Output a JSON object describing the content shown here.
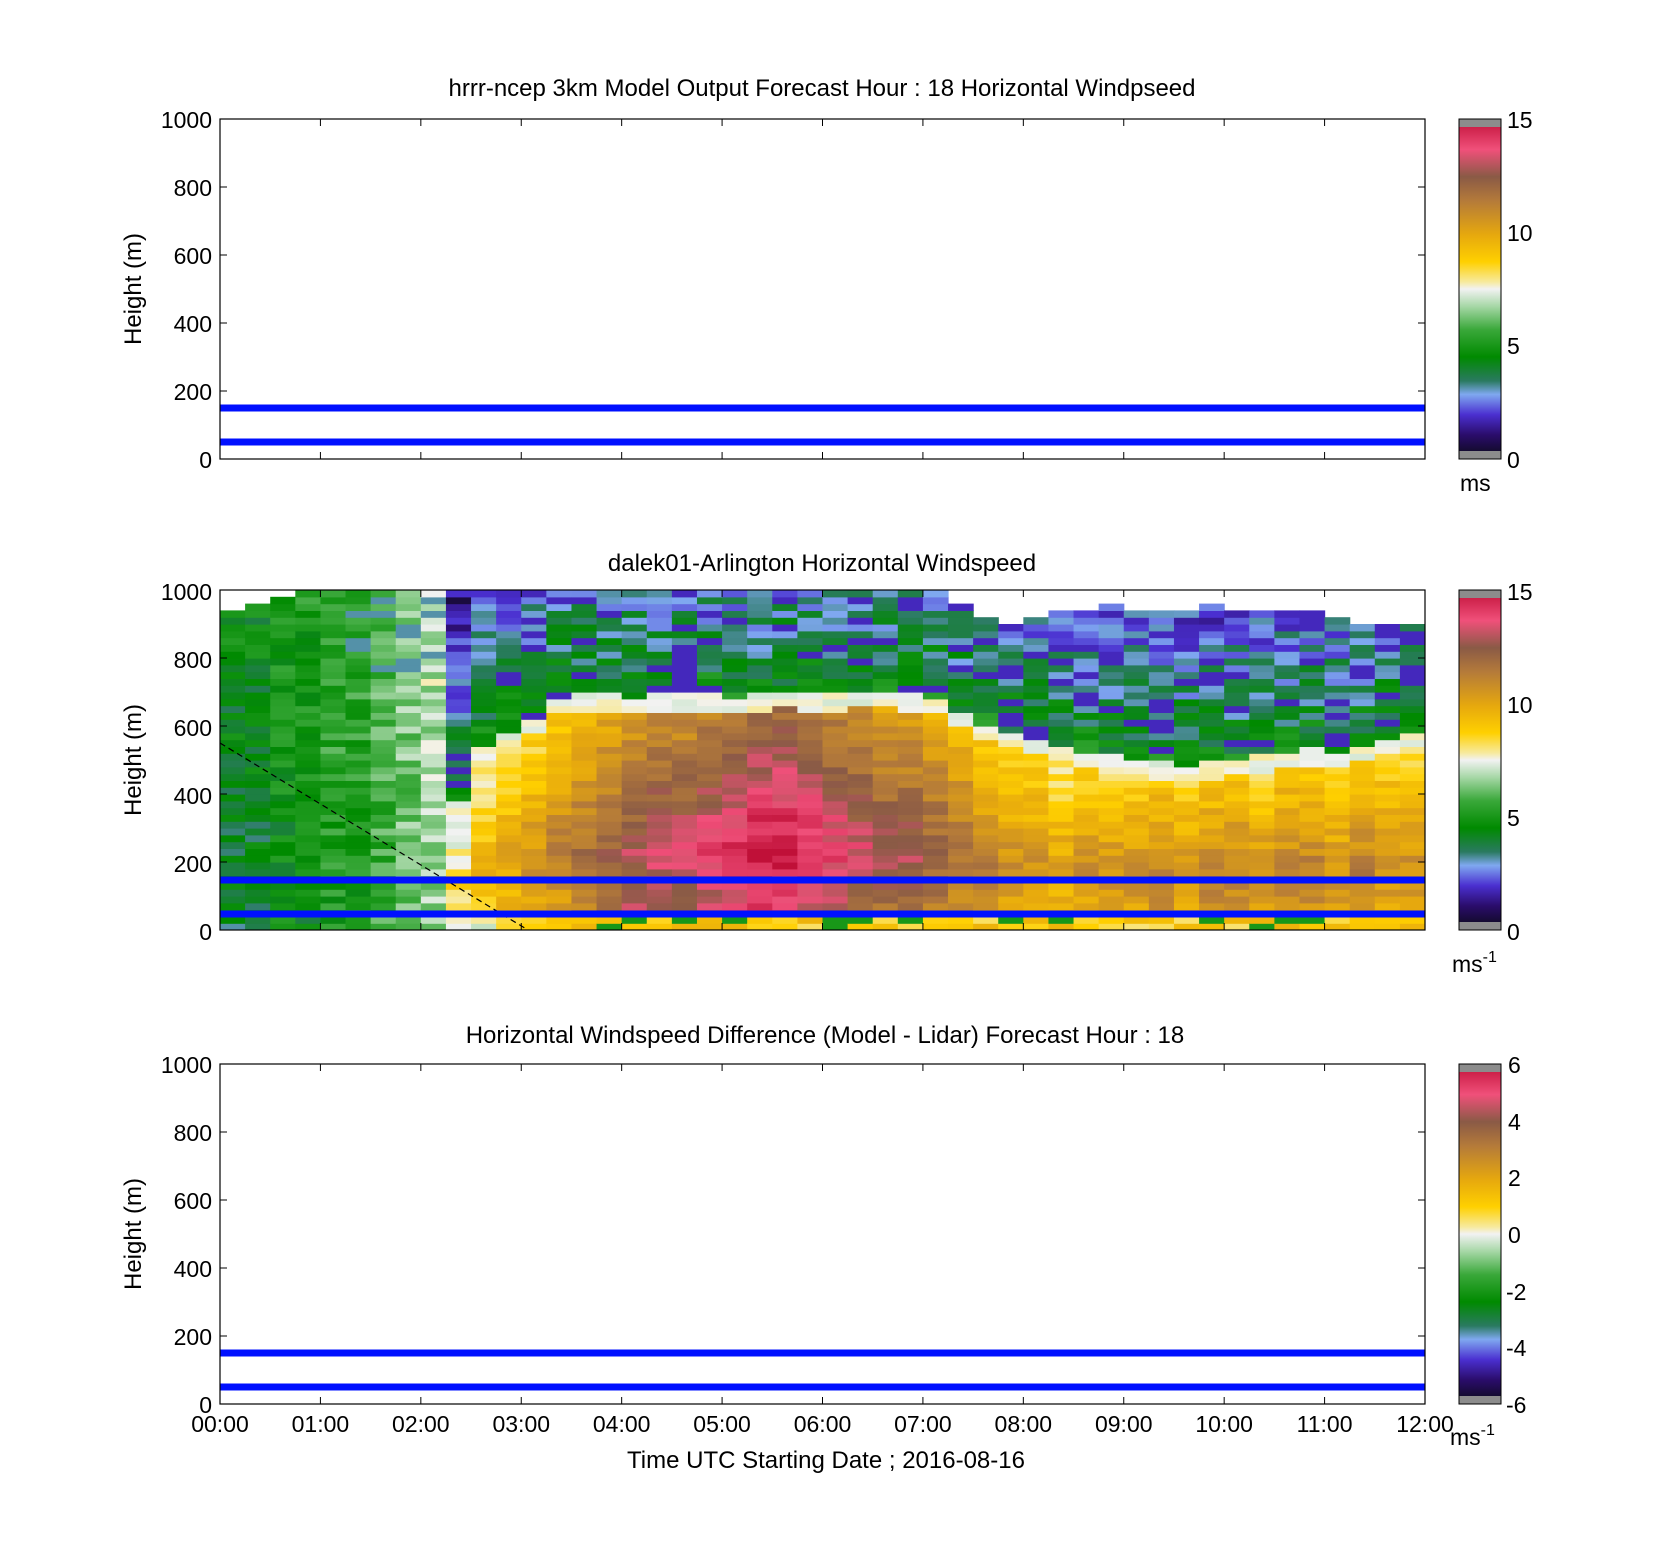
{
  "chart_data": [
    {
      "type": "heatmap",
      "title": "hrrr-ncep 3km Model Output   Forecast Hour : 18 Horizontal Windpseed",
      "ylabel": "Height (m)",
      "xlabel": "",
      "ylim": [
        0,
        1000
      ],
      "yticks": [
        0,
        200,
        400,
        600,
        800,
        1000
      ],
      "xlim": [
        "00:00",
        "12:00"
      ],
      "data_present": false,
      "reference_lines_m": [
        50,
        150
      ],
      "reference_line_color": "#0010ff",
      "colorbar": {
        "min": 0,
        "max": 15,
        "ticks": [
          0,
          5,
          10,
          15
        ],
        "unit": "ms",
        "unit_sup": ""
      }
    },
    {
      "type": "heatmap",
      "title": "dalek01-Arlington  Horizontal Windspeed",
      "ylabel": "Height (m)",
      "xlabel": "",
      "ylim": [
        0,
        1000
      ],
      "yticks": [
        0,
        200,
        400,
        600,
        800,
        1000
      ],
      "xlim": [
        "00:00",
        "12:00"
      ],
      "data_present": true,
      "reference_lines_m": [
        50,
        150
      ],
      "reference_line_color": "#0010ff",
      "dashed_line": [
        {
          "time": "00:00",
          "height": 550
        },
        {
          "time": "03:02",
          "height": 0
        }
      ],
      "colorbar": {
        "min": 0,
        "max": 15,
        "ticks": [
          0,
          5,
          10,
          15
        ],
        "unit": "ms",
        "unit_sup": "-1"
      },
      "columns": [
        {
          "t": "00:07",
          "top": 930,
          "pbl": null,
          "jet": null,
          "low": 4
        },
        {
          "t": "00:22",
          "top": 950,
          "pbl": null,
          "jet": null,
          "low": 4
        },
        {
          "t": "00:37",
          "top": 980,
          "pbl": null,
          "jet": null,
          "low": 4.5
        },
        {
          "t": "00:52",
          "top": 1000,
          "pbl": null,
          "jet": null,
          "low": 4.5
        },
        {
          "t": "01:07",
          "top": 1000,
          "pbl": null,
          "jet": null,
          "low": 5
        },
        {
          "t": "01:22",
          "top": 1000,
          "pbl": null,
          "jet": null,
          "low": 5
        },
        {
          "t": "01:37",
          "top": 1000,
          "pbl": null,
          "jet": null,
          "low": 5.5
        },
        {
          "t": "01:52",
          "top": 1000,
          "pbl": null,
          "jet": null,
          "low": 6
        },
        {
          "t": "02:07",
          "top": 1000,
          "pbl": null,
          "jet": null,
          "low": 6.5
        },
        {
          "t": "02:22",
          "top": 1000,
          "pbl": 330,
          "jet": 8,
          "low": 7.5
        },
        {
          "t": "02:37",
          "top": 1000,
          "pbl": 500,
          "jet": 9,
          "low": 8.5
        },
        {
          "t": "02:52",
          "top": 1000,
          "pbl": 540,
          "jet": 9.5,
          "low": 9
        },
        {
          "t": "03:07",
          "top": 1000,
          "pbl": 580,
          "jet": 10,
          "low": 9.5
        },
        {
          "t": "03:22",
          "top": 1000,
          "pbl": 640,
          "jet": 10.5,
          "low": 10
        },
        {
          "t": "03:37",
          "top": 1000,
          "pbl": 650,
          "jet": 11,
          "low": 11
        },
        {
          "t": "03:52",
          "top": 1000,
          "pbl": 650,
          "jet": 11.5,
          "low": 12
        },
        {
          "t": "04:07",
          "top": 1000,
          "pbl": 640,
          "jet": 12,
          "low": 13
        },
        {
          "t": "04:22",
          "top": 1000,
          "pbl": 650,
          "jet": 12.5,
          "low": 12.5
        },
        {
          "t": "04:37",
          "top": 1000,
          "pbl": 650,
          "jet": 12.5,
          "low": 12
        },
        {
          "t": "04:52",
          "top": 1000,
          "pbl": 650,
          "jet": 13,
          "low": 13
        },
        {
          "t": "05:07",
          "top": 1000,
          "pbl": 640,
          "jet": 13.5,
          "low": 13.5
        },
        {
          "t": "05:22",
          "top": 1000,
          "pbl": 650,
          "jet": 14,
          "low": 14
        },
        {
          "t": "05:37",
          "top": 1000,
          "pbl": 660,
          "jet": 14,
          "low": 14
        },
        {
          "t": "05:52",
          "top": 1000,
          "pbl": 650,
          "jet": 13.5,
          "low": 12
        },
        {
          "t": "06:07",
          "top": 1000,
          "pbl": 650,
          "jet": 13,
          "low": 11.5
        },
        {
          "t": "06:22",
          "top": 1000,
          "pbl": 660,
          "jet": 12.5,
          "low": 11
        },
        {
          "t": "06:37",
          "top": 1000,
          "pbl": 660,
          "jet": 12,
          "low": 11
        },
        {
          "t": "06:52",
          "top": 1000,
          "pbl": 650,
          "jet": 12,
          "low": 11
        },
        {
          "t": "07:07",
          "top": 1000,
          "pbl": 640,
          "jet": 11.5,
          "low": 11
        },
        {
          "t": "07:22",
          "top": 960,
          "pbl": 600,
          "jet": 11,
          "low": 10.5
        },
        {
          "t": "07:37",
          "top": 920,
          "pbl": 560,
          "jet": 10.5,
          "low": 10
        },
        {
          "t": "07:52",
          "top": 900,
          "pbl": 540,
          "jet": 10,
          "low": 10
        },
        {
          "t": "08:07",
          "top": 920,
          "pbl": 520,
          "jet": 10,
          "low": 9.5
        },
        {
          "t": "08:22",
          "top": 930,
          "pbl": 500,
          "jet": 9.5,
          "low": 9.5
        },
        {
          "t": "08:37",
          "top": 940,
          "pbl": 480,
          "jet": 10,
          "low": 9.5
        },
        {
          "t": "08:52",
          "top": 950,
          "pbl": 470,
          "jet": 10,
          "low": 9.5
        },
        {
          "t": "09:07",
          "top": 940,
          "pbl": 460,
          "jet": 10,
          "low": 9.5
        },
        {
          "t": "09:22",
          "top": 930,
          "pbl": 450,
          "jet": 10.5,
          "low": 9.5
        },
        {
          "t": "09:37",
          "top": 940,
          "pbl": 440,
          "jet": 10,
          "low": 9.5
        },
        {
          "t": "09:52",
          "top": 950,
          "pbl": 450,
          "jet": 10.5,
          "low": 9.5
        },
        {
          "t": "10:07",
          "top": 940,
          "pbl": 460,
          "jet": 10.5,
          "low": 9.5
        },
        {
          "t": "10:22",
          "top": 930,
          "pbl": 470,
          "jet": 10,
          "low": 9.5
        },
        {
          "t": "10:37",
          "top": 940,
          "pbl": 480,
          "jet": 10.5,
          "low": 9.5
        },
        {
          "t": "10:52",
          "top": 930,
          "pbl": 490,
          "jet": 10.5,
          "low": 9.5
        },
        {
          "t": "11:07",
          "top": 920,
          "pbl": 480,
          "jet": 10,
          "low": 9.5
        },
        {
          "t": "11:22",
          "top": 900,
          "pbl": 500,
          "jet": 10.5,
          "low": 9.5
        },
        {
          "t": "11:37",
          "top": 900,
          "pbl": 520,
          "jet": 10,
          "low": 9.5
        },
        {
          "t": "11:52",
          "top": 900,
          "pbl": 540,
          "jet": 10,
          "low": 9.5
        }
      ]
    },
    {
      "type": "heatmap",
      "title": "Horizontal Windspeed Difference (Model - Lidar) Forecast Hour : 18",
      "ylabel": "Height (m)",
      "xlabel": "Time UTC  Starting Date ; 2016-08-16",
      "ylim": [
        0,
        1000
      ],
      "yticks": [
        0,
        200,
        400,
        600,
        800,
        1000
      ],
      "xlim": [
        "00:00",
        "12:00"
      ],
      "xticks": [
        "00:00",
        "01:00",
        "02:00",
        "03:00",
        "04:00",
        "05:00",
        "06:00",
        "07:00",
        "08:00",
        "09:00",
        "10:00",
        "11:00",
        "12:00"
      ],
      "data_present": false,
      "reference_lines_m": [
        50,
        150
      ],
      "reference_line_color": "#0010ff",
      "colorbar": {
        "min": -6,
        "max": 6,
        "ticks": [
          -6,
          -4,
          -2,
          0,
          2,
          4,
          6
        ],
        "unit": "ms",
        "unit_sup": "-1"
      }
    }
  ]
}
